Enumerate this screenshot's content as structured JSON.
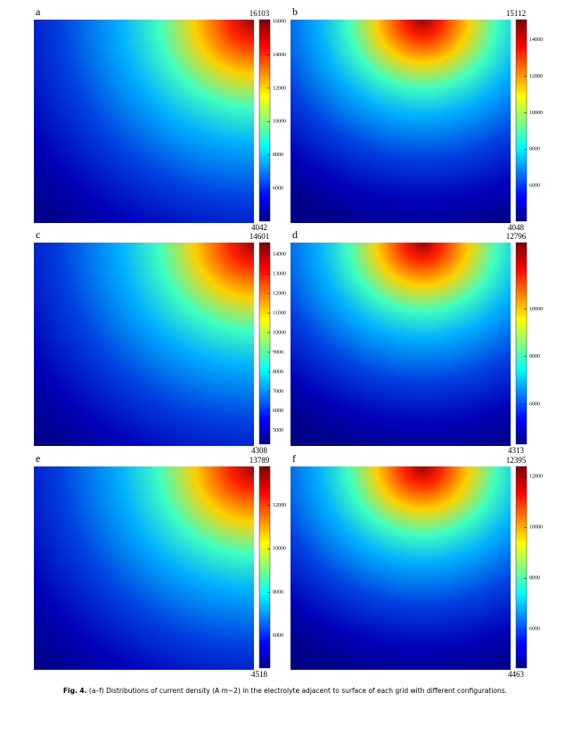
{
  "panels": [
    {
      "label": "a",
      "hotspot": "top-right",
      "colorbar": {
        "max": 16103,
        "min": 4042,
        "ticks": [
          6000,
          8000,
          10000,
          12000,
          14000,
          16000
        ]
      }
    },
    {
      "label": "b",
      "hotspot": "top-center",
      "colorbar": {
        "max": 15112,
        "min": 4048,
        "ticks": [
          6000,
          8000,
          10000,
          12000,
          14000
        ]
      }
    },
    {
      "label": "c",
      "hotspot": "top-right",
      "colorbar": {
        "max": 14601,
        "min": 4308,
        "ticks": [
          5000,
          6000,
          7000,
          8000,
          9000,
          10000,
          11000,
          12000,
          13000,
          14000
        ]
      }
    },
    {
      "label": "d",
      "hotspot": "top-center",
      "colorbar": {
        "max": 12796,
        "min": 4313,
        "ticks": [
          6000,
          8000,
          10000
        ]
      }
    },
    {
      "label": "e",
      "hotspot": "top-right",
      "colorbar": {
        "max": 13789,
        "min": 4518,
        "ticks": [
          6000,
          8000,
          10000,
          12000
        ]
      }
    },
    {
      "label": "f",
      "hotspot": "top-center",
      "colorbar": {
        "max": 12395,
        "min": 4463,
        "ticks": [
          6000,
          8000,
          10000,
          12000
        ]
      }
    }
  ],
  "caption": {
    "label": "Fig. 4.",
    "text": "(a–f) Distributions of current density (A m−2) in the electrolyte adjacent to surface of each grid with different configurations."
  }
}
